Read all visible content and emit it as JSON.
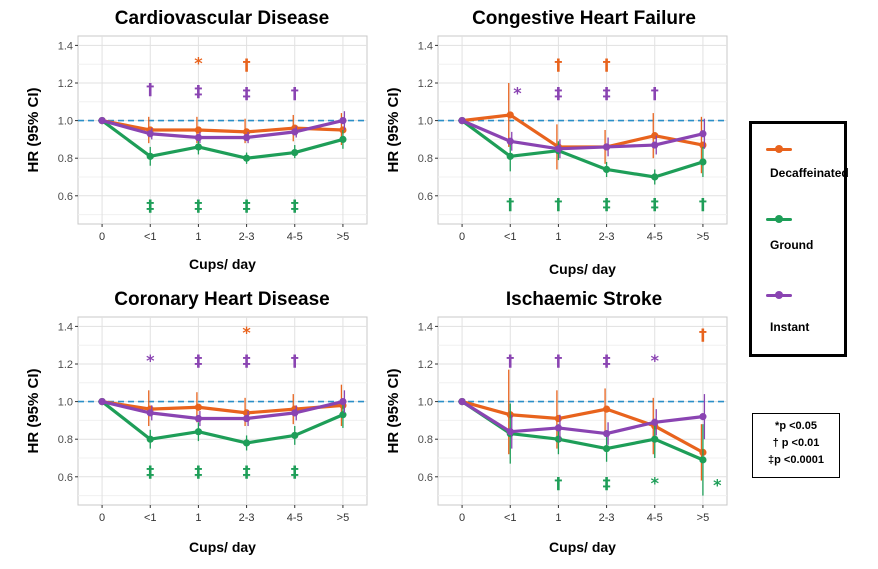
{
  "chart_data": [
    {
      "type": "line",
      "title": "Cardiovascular Disease",
      "xlabel": "Cups/ day",
      "ylabel": "HR (95% CI)",
      "categories": [
        "0",
        "<1",
        "1",
        "2-3",
        "4-5",
        ">5"
      ],
      "yticks": [
        "0.6",
        "0.8",
        "1.0",
        "1.2",
        "1.4"
      ],
      "ylim": [
        0.45,
        1.45
      ],
      "reference_line": 1.0,
      "series": [
        {
          "name": "Decaffeinated",
          "color": "#e8631d",
          "values": [
            1.0,
            0.95,
            0.95,
            0.94,
            0.96,
            0.95
          ],
          "ci_low": [
            1.0,
            0.88,
            0.88,
            0.88,
            0.89,
            0.87
          ],
          "ci_high": [
            1.0,
            1.02,
            1.02,
            1.01,
            1.03,
            1.04
          ]
        },
        {
          "name": "Ground",
          "color": "#1e9e58",
          "values": [
            1.0,
            0.81,
            0.86,
            0.8,
            0.83,
            0.9
          ],
          "ci_low": [
            1.0,
            0.76,
            0.82,
            0.77,
            0.8,
            0.85
          ],
          "ci_high": [
            1.0,
            0.86,
            0.9,
            0.83,
            0.87,
            0.95
          ]
        },
        {
          "name": "Instant",
          "color": "#8a44b2",
          "values": [
            1.0,
            0.93,
            0.91,
            0.91,
            0.94,
            1.0
          ],
          "ci_low": [
            1.0,
            0.9,
            0.88,
            0.88,
            0.91,
            0.95
          ],
          "ci_high": [
            1.0,
            0.96,
            0.94,
            0.94,
            0.97,
            1.05
          ]
        }
      ],
      "annotations": [
        {
          "cat": 2,
          "y": 1.31,
          "text": "*",
          "series": "Decaffeinated"
        },
        {
          "cat": 3,
          "y": 1.3,
          "text": "†",
          "series": "Decaffeinated"
        },
        {
          "cat": 1,
          "y": 1.17,
          "text": "†",
          "series": "Instant"
        },
        {
          "cat": 2,
          "y": 1.16,
          "text": "‡",
          "series": "Instant"
        },
        {
          "cat": 3,
          "y": 1.15,
          "text": "‡",
          "series": "Instant"
        },
        {
          "cat": 4,
          "y": 1.15,
          "text": "†",
          "series": "Instant"
        },
        {
          "cat": 1,
          "y": 0.55,
          "text": "‡",
          "series": "Ground"
        },
        {
          "cat": 2,
          "y": 0.55,
          "text": "‡",
          "series": "Ground"
        },
        {
          "cat": 3,
          "y": 0.55,
          "text": "‡",
          "series": "Ground"
        },
        {
          "cat": 4,
          "y": 0.55,
          "text": "‡",
          "series": "Ground"
        }
      ]
    },
    {
      "type": "line",
      "title": "Congestive Heart Failure",
      "xlabel": "Cups/ day",
      "ylabel": "HR (95% CI)",
      "categories": [
        "0",
        "<1",
        "1",
        "2-3",
        "4-5",
        ">5"
      ],
      "yticks": [
        "0.6",
        "0.8",
        "1.0",
        "1.2",
        "1.4"
      ],
      "ylim": [
        0.45,
        1.45
      ],
      "reference_line": 1.0,
      "series": [
        {
          "name": "Decaffeinated",
          "color": "#e8631d",
          "values": [
            1.0,
            1.03,
            0.86,
            0.86,
            0.92,
            0.87
          ],
          "ci_low": [
            1.0,
            0.86,
            0.74,
            0.77,
            0.8,
            0.72
          ],
          "ci_high": [
            1.0,
            1.2,
            0.98,
            0.95,
            1.04,
            1.02
          ]
        },
        {
          "name": "Ground",
          "color": "#1e9e58",
          "values": [
            1.0,
            0.81,
            0.84,
            0.74,
            0.7,
            0.78
          ],
          "ci_low": [
            1.0,
            0.73,
            0.79,
            0.7,
            0.66,
            0.7
          ],
          "ci_high": [
            1.0,
            0.89,
            0.89,
            0.78,
            0.74,
            0.86
          ]
        },
        {
          "name": "Instant",
          "color": "#8a44b2",
          "values": [
            1.0,
            0.89,
            0.85,
            0.86,
            0.87,
            0.93
          ],
          "ci_low": [
            1.0,
            0.84,
            0.8,
            0.81,
            0.82,
            0.85
          ],
          "ci_high": [
            1.0,
            0.94,
            0.9,
            0.91,
            0.92,
            1.01
          ]
        }
      ],
      "annotations": [
        {
          "cat": 2,
          "y": 1.3,
          "text": "†",
          "series": "Decaffeinated"
        },
        {
          "cat": 3,
          "y": 1.3,
          "text": "†",
          "series": "Decaffeinated"
        },
        {
          "cat": 1.15,
          "y": 1.15,
          "text": "*",
          "series": "Instant"
        },
        {
          "cat": 2,
          "y": 1.15,
          "text": "‡",
          "series": "Instant"
        },
        {
          "cat": 3,
          "y": 1.15,
          "text": "‡",
          "series": "Instant"
        },
        {
          "cat": 4,
          "y": 1.15,
          "text": "†",
          "series": "Instant"
        },
        {
          "cat": 1,
          "y": 0.56,
          "text": "†",
          "series": "Ground"
        },
        {
          "cat": 2,
          "y": 0.56,
          "text": "†",
          "series": "Ground"
        },
        {
          "cat": 3,
          "y": 0.56,
          "text": "‡",
          "series": "Ground"
        },
        {
          "cat": 4,
          "y": 0.56,
          "text": "‡",
          "series": "Ground"
        },
        {
          "cat": 5,
          "y": 0.56,
          "text": "†",
          "series": "Ground"
        }
      ]
    },
    {
      "type": "line",
      "title": "Coronary Heart Disease",
      "xlabel": "Cups/ day",
      "ylabel": "HR (95% CI)",
      "categories": [
        "0",
        "<1",
        "1",
        "2-3",
        "4-5",
        ">5"
      ],
      "yticks": [
        "0.6",
        "0.8",
        "1.0",
        "1.2",
        "1.4"
      ],
      "ylim": [
        0.45,
        1.45
      ],
      "reference_line": 1.0,
      "series": [
        {
          "name": "Decaffeinated",
          "color": "#e8631d",
          "values": [
            1.0,
            0.96,
            0.97,
            0.94,
            0.96,
            0.98
          ],
          "ci_low": [
            1.0,
            0.87,
            0.89,
            0.87,
            0.88,
            0.87
          ],
          "ci_high": [
            1.0,
            1.06,
            1.05,
            1.02,
            1.04,
            1.09
          ]
        },
        {
          "name": "Ground",
          "color": "#1e9e58",
          "values": [
            1.0,
            0.8,
            0.84,
            0.78,
            0.82,
            0.93
          ],
          "ci_low": [
            1.0,
            0.75,
            0.79,
            0.74,
            0.77,
            0.86
          ],
          "ci_high": [
            1.0,
            0.85,
            0.89,
            0.82,
            0.87,
            1.0
          ]
        },
        {
          "name": "Instant",
          "color": "#8a44b2",
          "values": [
            1.0,
            0.94,
            0.91,
            0.91,
            0.94,
            1.0
          ],
          "ci_low": [
            1.0,
            0.9,
            0.87,
            0.87,
            0.9,
            0.94
          ],
          "ci_high": [
            1.0,
            0.98,
            0.95,
            0.95,
            0.98,
            1.06
          ]
        }
      ],
      "annotations": [
        {
          "cat": 3,
          "y": 1.37,
          "text": "*",
          "series": "Decaffeinated"
        },
        {
          "cat": 1,
          "y": 1.22,
          "text": "*",
          "series": "Instant"
        },
        {
          "cat": 2,
          "y": 1.22,
          "text": "‡",
          "series": "Instant"
        },
        {
          "cat": 3,
          "y": 1.22,
          "text": "‡",
          "series": "Instant"
        },
        {
          "cat": 4,
          "y": 1.22,
          "text": "†",
          "series": "Instant"
        },
        {
          "cat": 1,
          "y": 0.63,
          "text": "‡",
          "series": "Ground"
        },
        {
          "cat": 2,
          "y": 0.63,
          "text": "‡",
          "series": "Ground"
        },
        {
          "cat": 3,
          "y": 0.63,
          "text": "‡",
          "series": "Ground"
        },
        {
          "cat": 4,
          "y": 0.63,
          "text": "‡",
          "series": "Ground"
        }
      ]
    },
    {
      "type": "line",
      "title": "Ischaemic Stroke",
      "xlabel": "Cups/ day",
      "ylabel": "HR (95% CI)",
      "categories": [
        "0",
        "<1",
        "1",
        "2-3",
        "4-5",
        ">5"
      ],
      "yticks": [
        "0.6",
        "0.8",
        "1.0",
        "1.2",
        "1.4"
      ],
      "ylim": [
        0.45,
        1.45
      ],
      "reference_line": 1.0,
      "series": [
        {
          "name": "Decaffeinated",
          "color": "#e8631d",
          "values": [
            1.0,
            0.93,
            0.91,
            0.96,
            0.87,
            0.73
          ],
          "ci_low": [
            1.0,
            0.72,
            0.75,
            0.84,
            0.72,
            0.58
          ],
          "ci_high": [
            1.0,
            1.17,
            1.06,
            1.07,
            1.02,
            0.88
          ]
        },
        {
          "name": "Ground",
          "color": "#1e9e58",
          "values": [
            1.0,
            0.83,
            0.8,
            0.75,
            0.8,
            0.69
          ],
          "ci_low": [
            1.0,
            0.67,
            0.72,
            0.68,
            0.7,
            0.5
          ],
          "ci_high": [
            1.0,
            0.99,
            0.88,
            0.82,
            0.9,
            0.88
          ]
        },
        {
          "name": "Instant",
          "color": "#8a44b2",
          "values": [
            1.0,
            0.84,
            0.86,
            0.83,
            0.89,
            0.92
          ],
          "ci_low": [
            1.0,
            0.75,
            0.79,
            0.77,
            0.82,
            0.8
          ],
          "ci_high": [
            1.0,
            0.93,
            0.93,
            0.89,
            0.96,
            1.04
          ]
        }
      ],
      "annotations": [
        {
          "cat": 5,
          "y": 1.36,
          "text": "†",
          "series": "Decaffeinated"
        },
        {
          "cat": 1,
          "y": 1.22,
          "text": "†",
          "series": "Instant"
        },
        {
          "cat": 2,
          "y": 1.22,
          "text": "†",
          "series": "Instant"
        },
        {
          "cat": 3,
          "y": 1.22,
          "text": "‡",
          "series": "Instant"
        },
        {
          "cat": 4,
          "y": 1.22,
          "text": "*",
          "series": "Instant"
        },
        {
          "cat": 2,
          "y": 0.57,
          "text": "†",
          "series": "Ground"
        },
        {
          "cat": 3,
          "y": 0.57,
          "text": "‡",
          "series": "Ground"
        },
        {
          "cat": 4,
          "y": 0.57,
          "text": "*",
          "series": "Ground"
        },
        {
          "cat": 5.3,
          "y": 0.56,
          "text": "*",
          "series": "Ground"
        }
      ]
    }
  ],
  "legend": {
    "items": [
      {
        "label": "Decaffeinated",
        "color": "#e8631d"
      },
      {
        "label": "Ground",
        "color": "#1e9e58"
      },
      {
        "label": "Instant",
        "color": "#8a44b2"
      }
    ]
  },
  "significance": {
    "lines": [
      "*p <0.05",
      "† p <0.01",
      "‡p <0.0001"
    ]
  }
}
